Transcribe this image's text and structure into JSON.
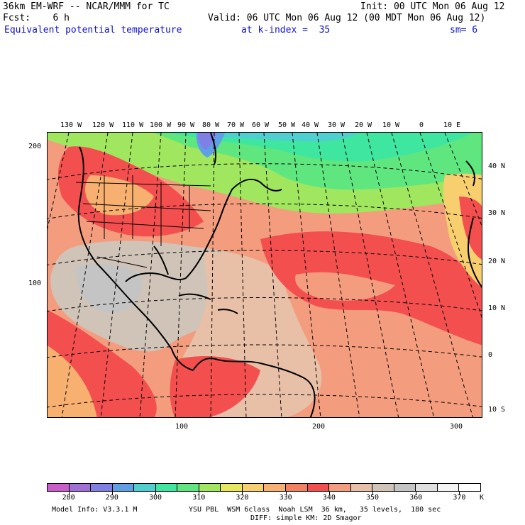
{
  "header": {
    "model_line": "36km EM-WRF -- NCAR/MMM for TC",
    "init": "Init: 00 UTC Mon 06 Aug 12",
    "fcst": "Fcst:    6 h",
    "valid": "Valid: 06 UTC Mon 06 Aug 12 (00 MDT Mon 06 Aug 12)",
    "field": "Equivalent potential temperature",
    "kindex": "at k-index =  35",
    "sm": "sm= 6"
  },
  "map": {
    "top_lon_labels": [
      "130 W",
      "120 W",
      "110 W",
      "100 W",
      "90 W",
      "80 W",
      "70 W",
      "60 W",
      "50 W",
      "40 W",
      "30 W",
      "20 W",
      "10 W",
      "0",
      "10 E"
    ],
    "right_lat_labels": [
      "40 N",
      "30 N",
      "20 N",
      "10 N",
      "0",
      "10 S"
    ],
    "left_grid_labels": [
      "200",
      "100"
    ],
    "bottom_grid_labels": [
      "100",
      "200",
      "300"
    ]
  },
  "colorbar": {
    "colors": [
      "#cc5ccc",
      "#a070d8",
      "#7f7fe6",
      "#5f9fe6",
      "#4fcfcf",
      "#3fe6a0",
      "#5fe67f",
      "#a0e65f",
      "#e6e65f",
      "#f7cf6f",
      "#f7b06f",
      "#f3805f",
      "#f34f4f",
      "#f39c7e",
      "#e8c0a8",
      "#d0c4b8",
      "#c4c4c4",
      "#e0e0e0",
      "#f4f4f4",
      "#ffffff"
    ],
    "labels": [
      "280",
      "290",
      "300",
      "310",
      "320",
      "330",
      "340",
      "350",
      "360",
      "370"
    ],
    "unit": "K"
  },
  "footer": {
    "model_info": "Model Info: V3.3.1 M",
    "physics1": "YSU PBL  WSM 6class  Noah LSM  36 km,   35 levels,  180 sec",
    "physics2": "DIFF: simple KM: 2D Smagor"
  }
}
